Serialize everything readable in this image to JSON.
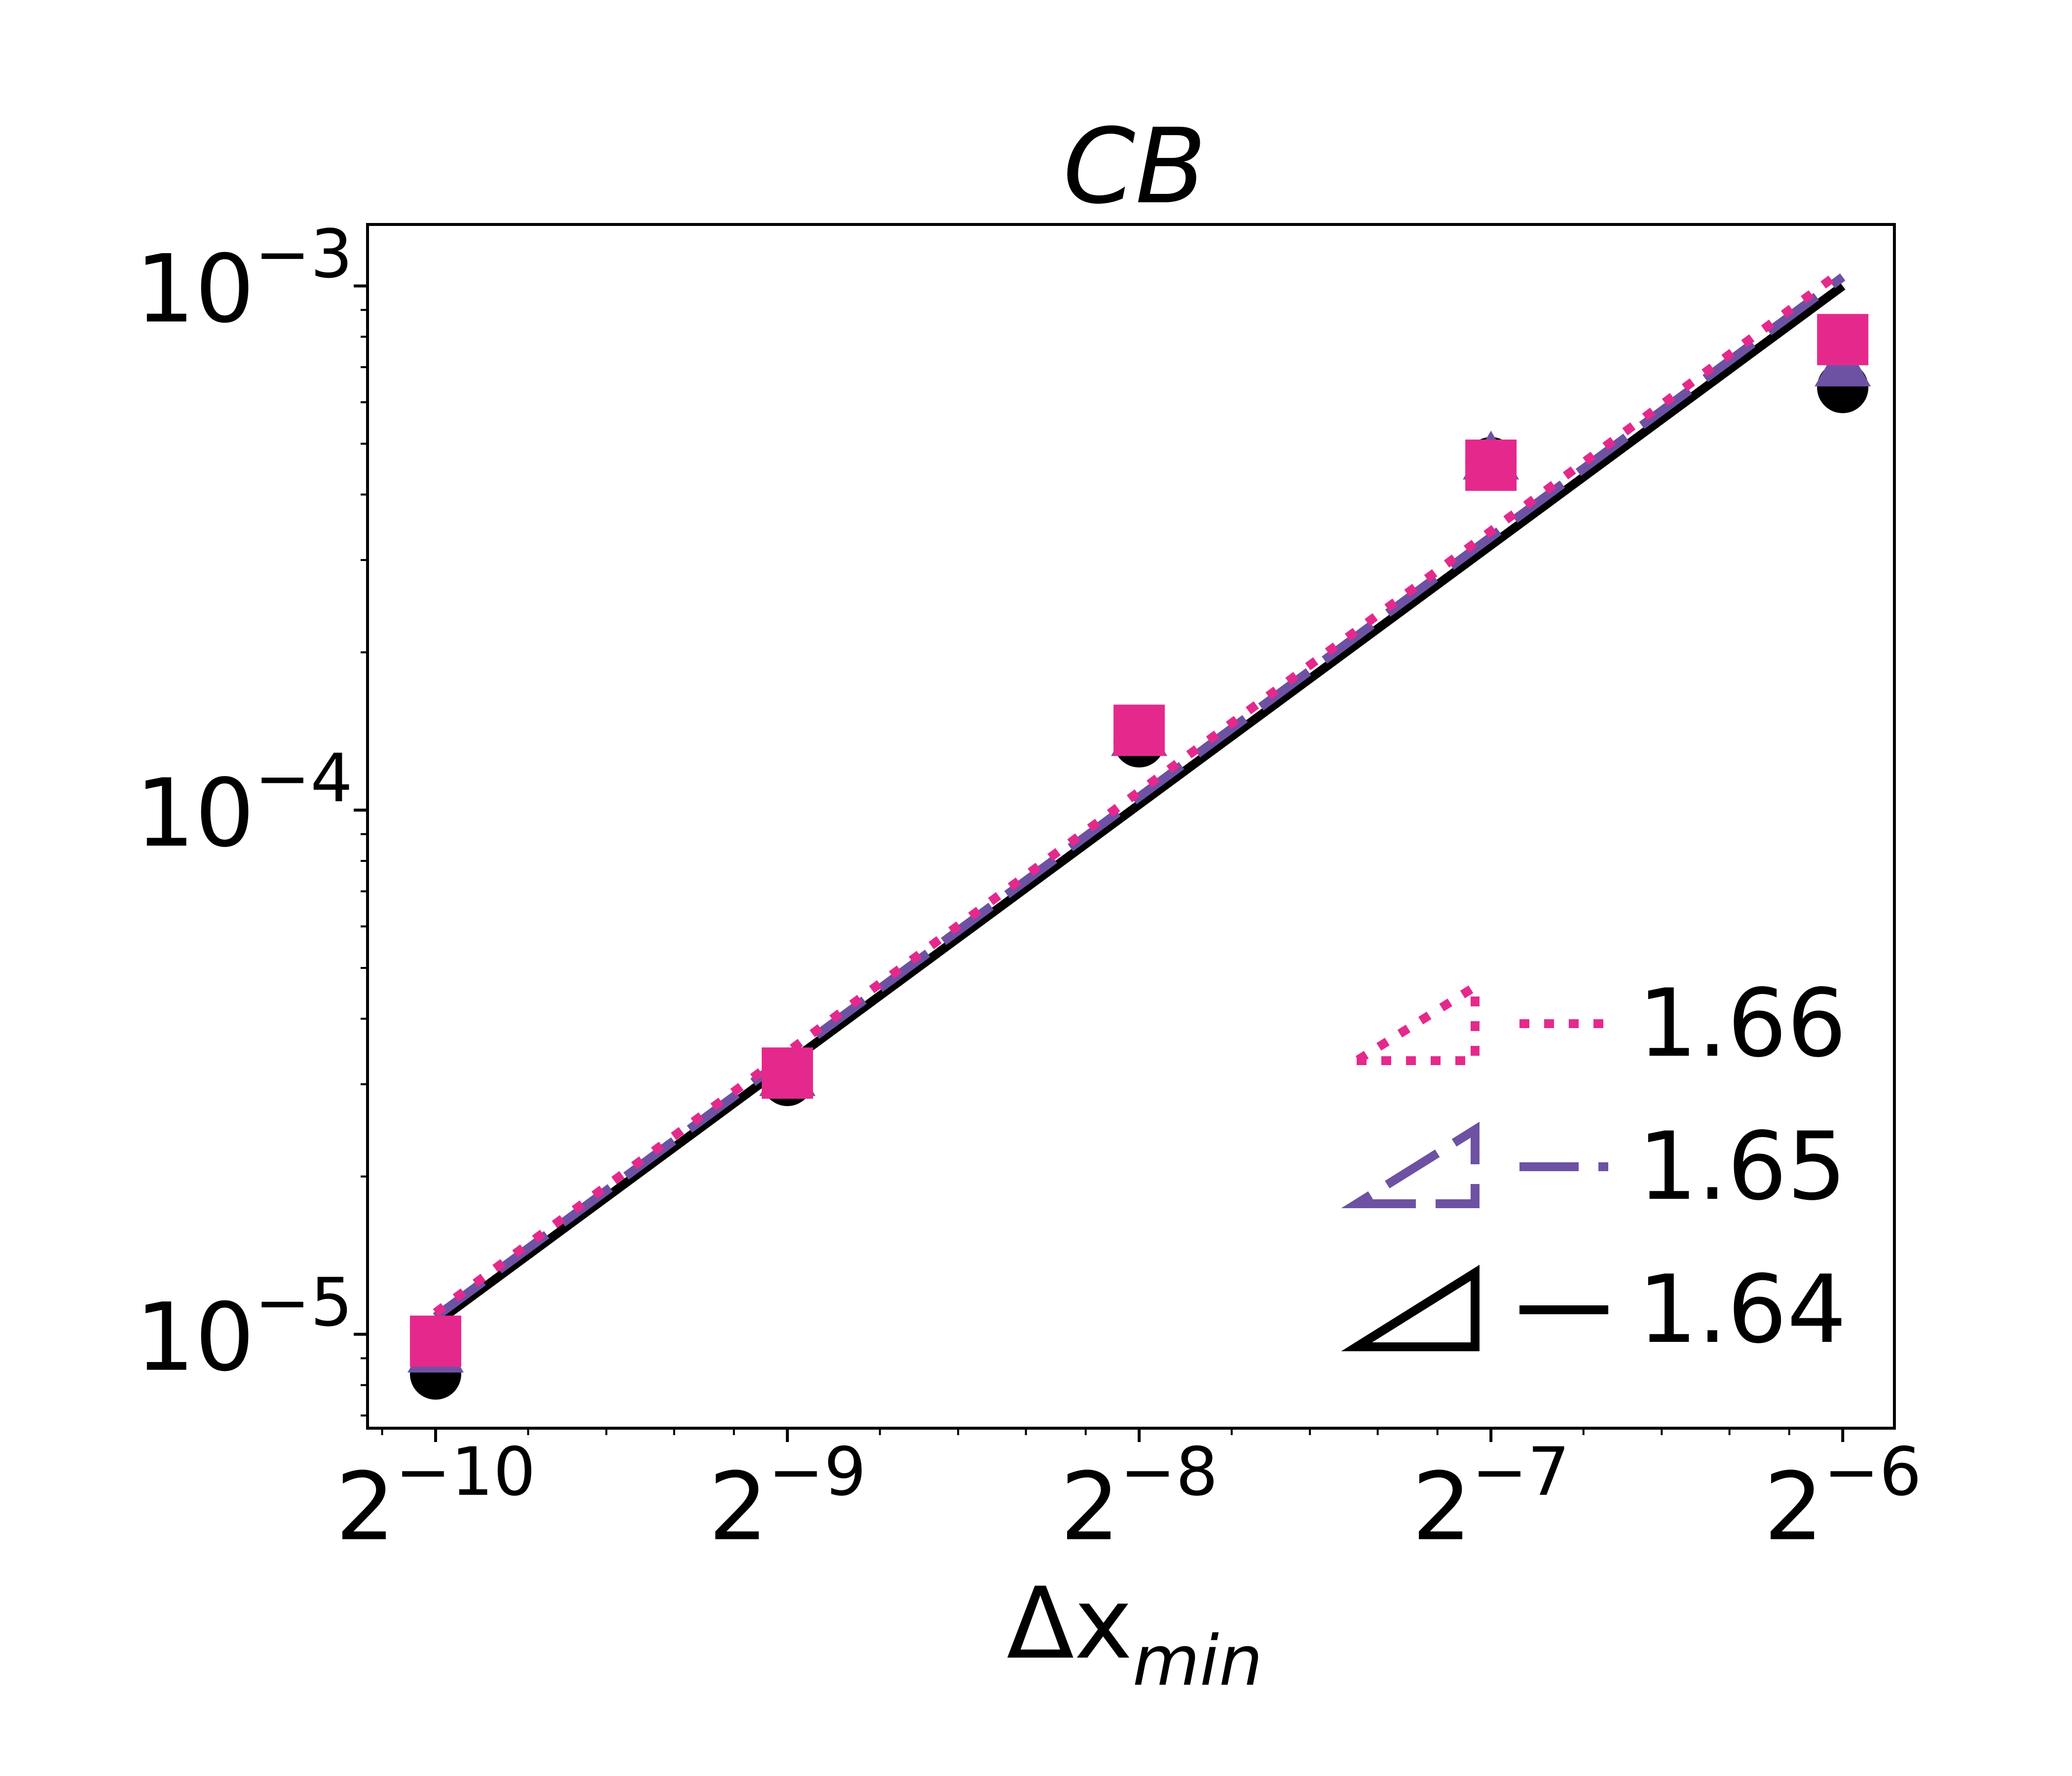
{
  "chart_data": {
    "type": "scatter",
    "title": "CB",
    "xlabel_main": "Δx",
    "xlabel_sub": "min",
    "ylabel": "",
    "x_scale": "log2",
    "y_scale": "log10",
    "xlim": [
      0.000854,
      0.0173
    ],
    "ylim": [
      6.62e-06,
      0.00131
    ],
    "x": [
      0.0009765625,
      0.001953125,
      0.00390625,
      0.0078125,
      0.015625
    ],
    "x_tick_base": "2",
    "x_ticks": [
      {
        "exp": "−10",
        "value": 0.0009765625
      },
      {
        "exp": "−9",
        "value": 0.001953125
      },
      {
        "exp": "−8",
        "value": 0.00390625
      },
      {
        "exp": "−7",
        "value": 0.0078125
      },
      {
        "exp": "−6",
        "value": 0.015625
      }
    ],
    "y_tick_base": "10",
    "y_ticks": [
      {
        "exp": "−5",
        "value": 1e-05
      },
      {
        "exp": "−4",
        "value": 0.0001
      },
      {
        "exp": "−3",
        "value": 0.001
      }
    ],
    "series": [
      {
        "marker": "circle",
        "color": "#000000",
        "values": [
          8.4e-06,
          3.05e-05,
          0.000135,
          0.00046,
          0.00064
        ],
        "fit": [
          1.05e-05,
          0.001
        ],
        "line_style": "solid",
        "slope_label": "1.64"
      },
      {
        "marker": "triangle",
        "color": "#6d52a3",
        "values": [
          9.2e-06,
          3.1e-05,
          0.000138,
          0.000465,
          0.0007
        ],
        "fit": [
          1.08e-05,
          0.00104
        ],
        "line_style": "dashed",
        "slope_label": "1.65"
      },
      {
        "marker": "square",
        "color": "#e5298c",
        "values": [
          9.7e-06,
          3.15e-05,
          0.000142,
          0.000455,
          0.00079
        ],
        "fit": [
          1.1e-05,
          0.00107
        ],
        "line_style": "dotted",
        "slope_label": "1.66"
      }
    ],
    "legend_order": [
      2,
      1,
      0
    ],
    "legend_position": "lower-right",
    "grid": false
  }
}
